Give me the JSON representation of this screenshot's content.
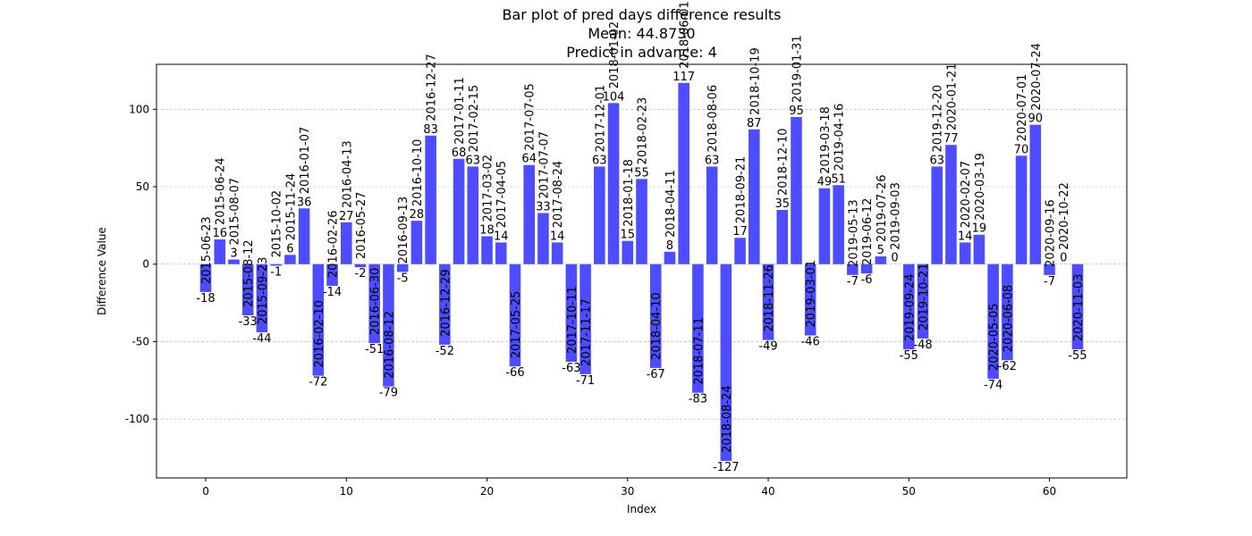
{
  "chart_data": {
    "type": "bar",
    "title_lines": [
      "Bar plot of pred days difference results",
      "Mean: 44.8730",
      "Predict in advance: 4"
    ],
    "xlabel": "Index",
    "ylabel": "Difference Value",
    "xlim": [
      -3.5,
      65.5
    ],
    "ylim": [
      -138,
      129
    ],
    "xticks": [
      0,
      10,
      20,
      30,
      40,
      50,
      60
    ],
    "yticks": [
      -100,
      -50,
      0,
      50,
      100
    ],
    "grid": "horizontal-dashed",
    "bar_color": "#4d4dff",
    "dates": [
      "2015-06-23",
      "2015-06-24",
      "2015-08-07",
      "2015-08-12",
      "2015-09-23",
      "2015-10-02",
      "2015-11-24",
      "2016-01-07",
      "2016-02-10",
      "2016-02-26",
      "2016-04-13",
      "2016-05-27",
      "2016-06-30",
      "2016-08-12",
      "2016-09-13",
      "2016-10-10",
      "2016-12-27",
      "2016-12-29",
      "2017-01-11",
      "2017-02-15",
      "2017-03-02",
      "2017-04-05",
      "2017-05-25",
      "2017-07-05",
      "2017-07-07",
      "2017-08-24",
      "2017-10-11",
      "2017-11-17",
      "2017-12-01",
      "2018-01-02",
      "2018-01-18",
      "2018-02-23",
      "2018-04-10",
      "2018-04-11",
      "2018-06-01",
      "2018-07-11",
      "2018-08-06",
      "2018-08-24",
      "2018-09-21",
      "2018-10-19",
      "2018-11-26",
      "2018-12-10",
      "2019-01-31",
      "2019-03-01",
      "2019-03-18",
      "2019-04-16",
      "2019-05-13",
      "2019-06-12",
      "2019-07-26",
      "2019-09-03",
      "2019-09-24",
      "2019-10-21",
      "2019-12-20",
      "2020-01-21",
      "2020-02-07",
      "2020-03-19",
      "2020-05-05",
      "2020-06-08",
      "2020-07-01",
      "2020-07-24",
      "2020-09-16",
      "2020-10-22",
      "2020-11-03"
    ],
    "values": [
      -18,
      16,
      3,
      -33,
      -44,
      -1,
      6,
      36,
      -72,
      -14,
      27,
      -2,
      -51,
      -79,
      -5,
      28,
      83,
      -52,
      68,
      63,
      18,
      14,
      -66,
      64,
      33,
      14,
      -63,
      -71,
      63,
      104,
      15,
      55,
      -67,
      8,
      117,
      -83,
      63,
      -127,
      17,
      87,
      -49,
      35,
      95,
      -46,
      49,
      51,
      -7,
      -6,
      5,
      0,
      -55,
      -48,
      63,
      77,
      14,
      19,
      -74,
      -62,
      70,
      90,
      -7,
      0,
      -55
    ]
  }
}
